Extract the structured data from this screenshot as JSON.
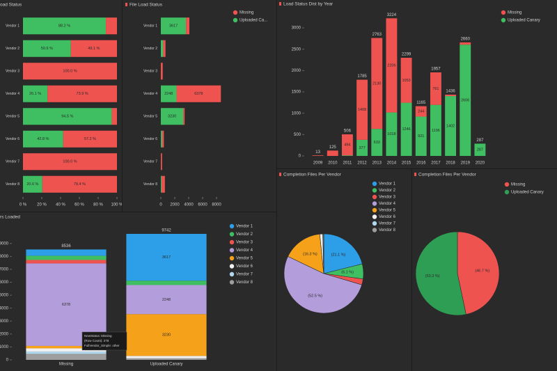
{
  "chart_data": [
    {
      "type": "bar",
      "orientation": "horizontal",
      "title": "oad Status",
      "categories": [
        "Vendor 1",
        "Vendor 2",
        "Vendor 3",
        "Vendor 4",
        "Vendor 5",
        "Vendor 6",
        "Vendor 7",
        "Vendor 8"
      ],
      "series": [
        {
          "color": "#ef5350",
          "values": [
            11.8,
            49.1,
            100,
            73.9,
            5.5,
            57.2,
            100,
            79.4
          ],
          "value_labels": [
            null,
            "49.1 %",
            "100.0 %",
            "73.9 %",
            null,
            "57.2 %",
            "100.0 %",
            "79.4 %"
          ]
        },
        {
          "color": "#3fbf62",
          "values": [
            88.2,
            50.9,
            0,
            26.1,
            94.5,
            42.8,
            0,
            20.6
          ],
          "value_labels": [
            "88.2 %",
            "50.9 %",
            null,
            "26.1 %",
            "94.5 %",
            "42.8 %",
            null,
            "20.6 %"
          ]
        }
      ],
      "xlim": [
        0,
        100
      ],
      "xticks": [
        {
          "value": 0,
          "label": "0 %"
        },
        {
          "value": 20,
          "label": "20 %"
        },
        {
          "value": 40,
          "label": "40 %"
        },
        {
          "value": 60,
          "label": "60 %"
        },
        {
          "value": 80,
          "label": "80 %"
        },
        {
          "value": 100,
          "label": "100 %"
        }
      ]
    },
    {
      "type": "bar",
      "orientation": "horizontal",
      "title": "File Load Status",
      "categories": [
        "Vendor 1",
        "Vendor 2",
        "Vendor 3",
        "Vendor 4",
        "Vendor 5",
        "Vendor 6",
        "Vendor 7",
        "Vendor 8"
      ],
      "series": [
        {
          "name": "Missing",
          "color": "#ef5350",
          "values": [
            484,
            328,
            267,
            6378,
            188,
            250,
            178,
            463
          ],
          "value_labels": [
            null,
            null,
            null,
            "6378",
            null,
            null,
            null,
            null
          ]
        },
        {
          "name": "Uploaded Ca...",
          "color": "#3fbf62",
          "values": [
            3617,
            340,
            0,
            2248,
            3230,
            187,
            0,
            120
          ],
          "value_labels": [
            "3617",
            null,
            null,
            "2248",
            "3230",
            null,
            null,
            null
          ]
        }
      ],
      "xlim": [
        0,
        9400
      ],
      "xticks": [
        0,
        2000,
        4000,
        6000,
        8000
      ],
      "legend": "top-right"
    },
    {
      "type": "bar",
      "orientation": "vertical",
      "title": "Load Status Dist by Year",
      "categories": [
        "2009",
        "2010",
        "2011",
        "2012",
        "2013",
        "2014",
        "2015",
        "2016",
        "2017",
        "2018",
        "2019",
        "2020"
      ],
      "series": [
        {
          "name": "Missing",
          "color": "#ef5350",
          "values": [
            13,
            125,
            494,
            1408,
            2130,
            2206,
            1053,
            244,
            761,
            34,
            54,
            0
          ],
          "value_labels": [
            null,
            null,
            "494",
            "1408",
            "2130",
            "2206",
            "1053",
            "244",
            "761",
            null,
            null,
            null
          ]
        },
        {
          "name": "Uploaded Canary",
          "color": "#3fbf62",
          "values": [
            0,
            0,
            12,
            377,
            633,
            1018,
            1246,
            921,
            1196,
            1402,
            2606,
            287
          ],
          "value_labels": [
            null,
            null,
            null,
            "377",
            "633",
            "1018",
            "1246",
            "921",
            "1196",
            "1402",
            "2606",
            "287"
          ]
        }
      ],
      "totals": [
        "13",
        "125",
        "506",
        "1785",
        "2763",
        "3224",
        "2299",
        "1165",
        "1957",
        "1436",
        "2660",
        "287"
      ],
      "ylim": [
        0,
        3400
      ],
      "yticks": [
        0,
        500,
        1000,
        1500,
        2000,
        2500,
        3000
      ],
      "legend": "top-right"
    },
    {
      "type": "bar",
      "orientation": "vertical",
      "title": "rs Loaded",
      "categories": [
        "Missing",
        "Uploaded Canary"
      ],
      "series": [
        {
          "name": "Vendor 1",
          "color": "#2d9ee8",
          "values": [
            484,
            3617
          ],
          "value_labels": [
            null,
            "3617"
          ]
        },
        {
          "name": "Vendor 2",
          "color": "#3fbf62",
          "values": [
            328,
            340
          ],
          "value_labels": [
            null,
            null
          ]
        },
        {
          "name": "Vendor 3",
          "color": "#ef5350",
          "values": [
            267,
            0
          ],
          "value_labels": [
            null,
            null
          ]
        },
        {
          "name": "Vendor 4",
          "color": "#b39ddb",
          "values": [
            6378,
            2248
          ],
          "value_labels": [
            "6378",
            "2248"
          ]
        },
        {
          "name": "Vendor 5",
          "color": "#f5a11a",
          "values": [
            188,
            3230
          ],
          "value_labels": [
            null,
            "3230"
          ]
        },
        {
          "name": "Vendor 6",
          "color": "#f1f1f1",
          "values": [
            250,
            187
          ],
          "value_labels": [
            null,
            null
          ]
        },
        {
          "name": "Vendor 7",
          "color": "#b0d8ee",
          "values": [
            178,
            0
          ],
          "value_labels": [
            null,
            null
          ]
        },
        {
          "name": "Vendor 8",
          "color": "#9e9e9e",
          "values": [
            463,
            120
          ],
          "value_labels": [
            null,
            null
          ]
        }
      ],
      "totals": [
        "8536",
        "9742"
      ],
      "ylim": [
        0,
        10500
      ],
      "yticks": [
        0,
        1000,
        2000,
        3000,
        4000,
        5000,
        6000,
        7000,
        8000,
        9000
      ],
      "legend": "top-right",
      "tooltip": [
        "NewStatus: Missing",
        "(Row Count): 278",
        "FullVendor_Simple: other"
      ]
    },
    {
      "type": "pie",
      "title": "Completion Files Per Vendor",
      "categories": [
        "Vendor 1",
        "Vendor 2",
        "Vendor 3",
        "Vendor 4",
        "Vendor 5",
        "Vendor 6",
        "Vendor 7",
        "Vendor 8"
      ],
      "values": [
        21.1,
        6.1,
        2.4,
        52.5,
        16.3,
        1.2,
        0.3,
        0.1
      ],
      "value_labels": [
        "(21.1 %)",
        "(6.1 %)",
        null,
        "(52.5 %)",
        "(16.3 %)",
        null,
        null,
        null
      ],
      "colors": [
        "#2d9ee8",
        "#3fbf62",
        "#ef5350",
        "#b39ddb",
        "#f5a11a",
        "#f1f1f1",
        "#b0d8ee",
        "#9e9e9e"
      ],
      "legend": "top-right"
    },
    {
      "type": "pie",
      "title": "Completion Files Per Vendor",
      "categories": [
        "Missing",
        "Uploaded Canary"
      ],
      "values": [
        46.7,
        53.3
      ],
      "value_labels": [
        "(46.7 %)",
        "(53.3 %)"
      ],
      "colors": [
        "#ef5350",
        "#2e9e55"
      ],
      "legend": "top-right"
    }
  ]
}
